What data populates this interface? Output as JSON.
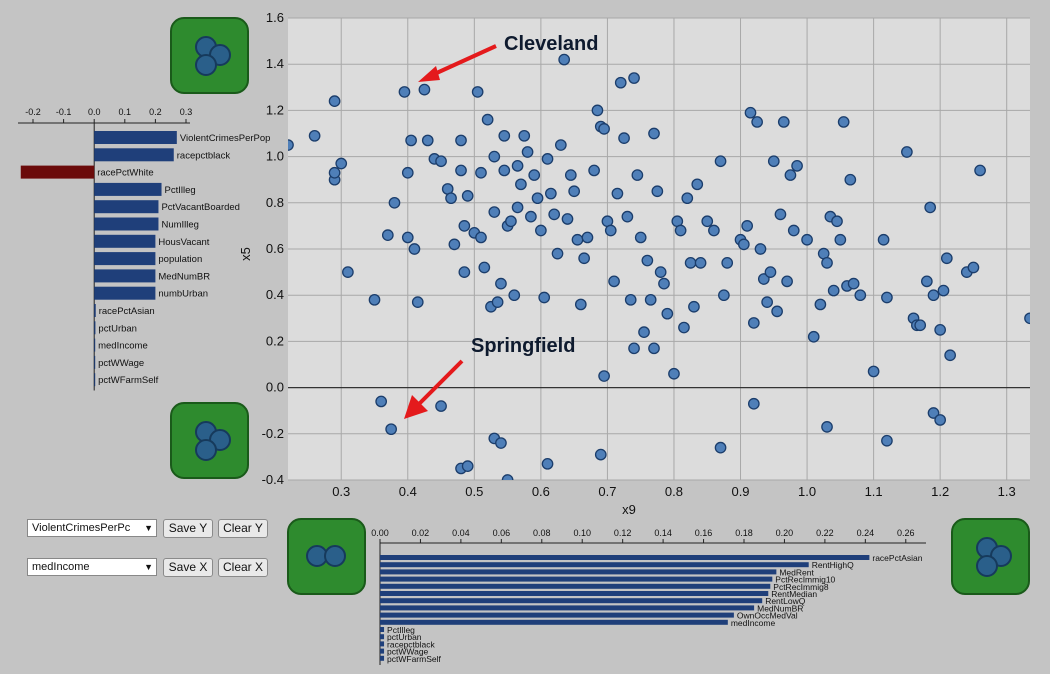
{
  "colors": {
    "background": "#c4c4c4",
    "plot_background": "#dcdcdc",
    "bar_blue": "#1f3f7a",
    "bar_red": "#6b0b0b",
    "point_fill": "#4f7fb8",
    "point_stroke": "#1b3d6b",
    "tile_green": "#2e8b2e",
    "arrow_red": "#e41a1c"
  },
  "icons": [
    "cluster-tile-icon",
    "red-arrow-icon"
  ],
  "annotations": {
    "cleveland": "Cleveland",
    "springfield": "Springfield"
  },
  "controls": {
    "y_select_value": "ViolentCrimesPerPc",
    "x_select_value": "medIncome",
    "save_y": "Save Y",
    "clear_y": "Clear Y",
    "save_x": "Save X",
    "clear_x": "Clear X"
  },
  "chart_data": [
    {
      "type": "scatter",
      "xlabel": "x9",
      "ylabel": "x5",
      "xlim": [
        0.22,
        1.335
      ],
      "ylim": [
        -0.4,
        1.6
      ],
      "x_ticks": [
        "0.3",
        "0.4",
        "0.5",
        "0.6",
        "0.7",
        "0.8",
        "0.9",
        "1.0",
        "1.1",
        "1.2",
        "1.3"
      ],
      "y_ticks": [
        "-0.4",
        "-0.2",
        "0.0",
        "0.2",
        "0.4",
        "0.6",
        "0.8",
        "1.0",
        "1.2",
        "1.4",
        "1.6"
      ],
      "grid": true,
      "points": [
        [
          0.22,
          1.05
        ],
        [
          0.26,
          1.09
        ],
        [
          0.29,
          1.24
        ],
        [
          0.29,
          0.9
        ],
        [
          0.29,
          0.93
        ],
        [
          0.3,
          0.97
        ],
        [
          0.31,
          0.5
        ],
        [
          0.35,
          0.38
        ],
        [
          0.37,
          0.66
        ],
        [
          0.38,
          0.8
        ],
        [
          0.395,
          1.28
        ],
        [
          0.4,
          0.65
        ],
        [
          0.4,
          0.93
        ],
        [
          0.405,
          1.07
        ],
        [
          0.41,
          0.6
        ],
        [
          0.415,
          0.37
        ],
        [
          0.425,
          1.29
        ],
        [
          0.43,
          1.07
        ],
        [
          0.44,
          0.99
        ],
        [
          0.45,
          0.98
        ],
        [
          0.46,
          0.86
        ],
        [
          0.465,
          0.82
        ],
        [
          0.47,
          0.62
        ],
        [
          0.48,
          0.94
        ],
        [
          0.48,
          1.07
        ],
        [
          0.485,
          0.7
        ],
        [
          0.485,
          0.5
        ],
        [
          0.49,
          0.83
        ],
        [
          0.5,
          0.67
        ],
        [
          0.505,
          1.28
        ],
        [
          0.51,
          0.65
        ],
        [
          0.51,
          0.93
        ],
        [
          0.515,
          0.52
        ],
        [
          0.52,
          1.16
        ],
        [
          0.525,
          0.35
        ],
        [
          0.53,
          1.0
        ],
        [
          0.53,
          0.76
        ],
        [
          0.535,
          0.37
        ],
        [
          0.54,
          0.45
        ],
        [
          0.545,
          1.09
        ],
        [
          0.545,
          0.94
        ],
        [
          0.55,
          0.7
        ],
        [
          0.555,
          0.72
        ],
        [
          0.56,
          0.4
        ],
        [
          0.565,
          0.96
        ],
        [
          0.565,
          0.78
        ],
        [
          0.57,
          0.88
        ],
        [
          0.575,
          1.09
        ],
        [
          0.58,
          1.02
        ],
        [
          0.585,
          0.74
        ],
        [
          0.59,
          0.92
        ],
        [
          0.595,
          0.82
        ],
        [
          0.6,
          0.68
        ],
        [
          0.605,
          0.39
        ],
        [
          0.61,
          0.99
        ],
        [
          0.615,
          0.84
        ],
        [
          0.62,
          0.75
        ],
        [
          0.625,
          0.58
        ],
        [
          0.63,
          1.05
        ],
        [
          0.635,
          1.42
        ],
        [
          0.64,
          0.73
        ],
        [
          0.645,
          0.92
        ],
        [
          0.65,
          0.85
        ],
        [
          0.655,
          0.64
        ],
        [
          0.66,
          0.36
        ],
        [
          0.665,
          0.56
        ],
        [
          0.67,
          0.65
        ],
        [
          0.68,
          0.94
        ],
        [
          0.685,
          1.2
        ],
        [
          0.69,
          1.13
        ],
        [
          0.695,
          1.12
        ],
        [
          0.7,
          0.72
        ],
        [
          0.705,
          0.68
        ],
        [
          0.71,
          0.46
        ],
        [
          0.715,
          0.84
        ],
        [
          0.72,
          1.32
        ],
        [
          0.725,
          1.08
        ],
        [
          0.73,
          0.74
        ],
        [
          0.735,
          0.38
        ],
        [
          0.74,
          1.34
        ],
        [
          0.745,
          0.92
        ],
        [
          0.75,
          0.65
        ],
        [
          0.755,
          0.24
        ],
        [
          0.76,
          0.55
        ],
        [
          0.765,
          0.38
        ],
        [
          0.77,
          1.1
        ],
        [
          0.775,
          0.85
        ],
        [
          0.78,
          0.5
        ],
        [
          0.785,
          0.45
        ],
        [
          0.79,
          0.32
        ],
        [
          0.8,
          0.06
        ],
        [
          0.805,
          0.72
        ],
        [
          0.81,
          0.68
        ],
        [
          0.815,
          0.26
        ],
        [
          0.82,
          0.82
        ],
        [
          0.825,
          0.54
        ],
        [
          0.83,
          0.35
        ],
        [
          0.835,
          0.88
        ],
        [
          0.84,
          0.54
        ],
        [
          0.85,
          0.72
        ],
        [
          0.86,
          0.68
        ],
        [
          0.87,
          0.98
        ],
        [
          0.875,
          0.4
        ],
        [
          0.88,
          0.54
        ],
        [
          0.9,
          0.64
        ],
        [
          0.905,
          0.62
        ],
        [
          0.91,
          0.7
        ],
        [
          0.915,
          1.19
        ],
        [
          0.92,
          0.28
        ],
        [
          0.925,
          1.15
        ],
        [
          0.93,
          0.6
        ],
        [
          0.935,
          0.47
        ],
        [
          0.94,
          0.37
        ],
        [
          0.945,
          0.5
        ],
        [
          0.95,
          0.98
        ],
        [
          0.955,
          0.33
        ],
        [
          0.96,
          0.75
        ],
        [
          0.965,
          1.15
        ],
        [
          0.97,
          0.46
        ],
        [
          0.975,
          0.92
        ],
        [
          0.98,
          0.68
        ],
        [
          0.985,
          0.96
        ],
        [
          1.0,
          0.64
        ],
        [
          1.01,
          0.22
        ],
        [
          1.02,
          0.36
        ],
        [
          1.025,
          0.58
        ],
        [
          1.03,
          0.54
        ],
        [
          1.035,
          0.74
        ],
        [
          1.04,
          0.42
        ],
        [
          1.045,
          0.72
        ],
        [
          1.05,
          0.64
        ],
        [
          1.055,
          1.15
        ],
        [
          1.06,
          0.44
        ],
        [
          1.065,
          0.9
        ],
        [
          1.07,
          0.45
        ],
        [
          1.08,
          0.4
        ],
        [
          1.1,
          0.07
        ],
        [
          1.115,
          0.64
        ],
        [
          1.12,
          0.39
        ],
        [
          1.15,
          1.02
        ],
        [
          1.16,
          0.3
        ],
        [
          1.165,
          0.27
        ],
        [
          1.17,
          0.27
        ],
        [
          1.18,
          0.46
        ],
        [
          1.185,
          0.78
        ],
        [
          1.19,
          0.4
        ],
        [
          1.2,
          0.25
        ],
        [
          1.205,
          0.42
        ],
        [
          1.21,
          0.56
        ],
        [
          1.215,
          0.14
        ],
        [
          1.24,
          0.5
        ],
        [
          1.25,
          0.52
        ],
        [
          1.26,
          0.94
        ],
        [
          1.335,
          0.3
        ],
        [
          0.36,
          -0.06
        ],
        [
          0.375,
          -0.18
        ],
        [
          0.45,
          -0.08
        ],
        [
          0.48,
          -0.35
        ],
        [
          0.49,
          -0.34
        ],
        [
          0.53,
          -0.22
        ],
        [
          0.54,
          -0.24
        ],
        [
          0.55,
          -0.4
        ],
        [
          0.61,
          -0.33
        ],
        [
          0.69,
          -0.29
        ],
        [
          0.87,
          -0.26
        ],
        [
          0.92,
          -0.07
        ],
        [
          1.03,
          -0.17
        ],
        [
          1.12,
          -0.23
        ],
        [
          1.19,
          -0.11
        ],
        [
          1.2,
          -0.14
        ],
        [
          0.695,
          0.05
        ],
        [
          0.74,
          0.17
        ],
        [
          0.77,
          0.17
        ]
      ]
    },
    {
      "type": "bar",
      "orientation": "horizontal",
      "xlim": [
        -0.25,
        0.3
      ],
      "ticks": [
        "-0.2",
        "-0.1",
        "0.0",
        "0.1",
        "0.2",
        "0.3"
      ],
      "categories": [
        "ViolentCrimesPerPop",
        "racepctblack",
        "racePctWhite",
        "PctIlleg",
        "PctVacantBoarded",
        "NumIlleg",
        "HousVacant",
        "population",
        "MedNumBR",
        "numbUrban",
        "racePctAsian",
        "pctUrban",
        "medIncome",
        "pctWWage",
        "pctWFarmSelf"
      ],
      "values": [
        0.27,
        0.26,
        -0.24,
        0.22,
        0.21,
        0.21,
        0.2,
        0.2,
        0.2,
        0.2,
        0.005,
        0.004,
        0.003,
        0.003,
        0.003
      ],
      "highlight": [
        false,
        false,
        true,
        false,
        false,
        false,
        false,
        false,
        false,
        false,
        false,
        false,
        false,
        false,
        false
      ]
    },
    {
      "type": "bar",
      "orientation": "horizontal",
      "xlim": [
        0.0,
        0.27
      ],
      "ticks": [
        "0.00",
        "0.02",
        "0.04",
        "0.06",
        "0.08",
        "0.10",
        "0.12",
        "0.14",
        "0.16",
        "0.18",
        "0.20",
        "0.22",
        "0.24",
        "0.26"
      ],
      "categories": [
        "racePctAsian",
        "RentHighQ",
        "MedRent",
        "PctRecImmig10",
        "PctRecImmig8",
        "RentMedian",
        "RentLowQ",
        "MedNumBR",
        "OwnOccMedVal",
        "medIncome",
        "PctIlleg",
        "pctUrban",
        "racepctblack",
        "pctWWage",
        "pctWFarmSelf"
      ],
      "values": [
        0.242,
        0.212,
        0.196,
        0.194,
        0.193,
        0.192,
        0.189,
        0.185,
        0.175,
        0.172,
        0.002,
        0.002,
        0.002,
        0.002,
        0.002
      ]
    }
  ]
}
